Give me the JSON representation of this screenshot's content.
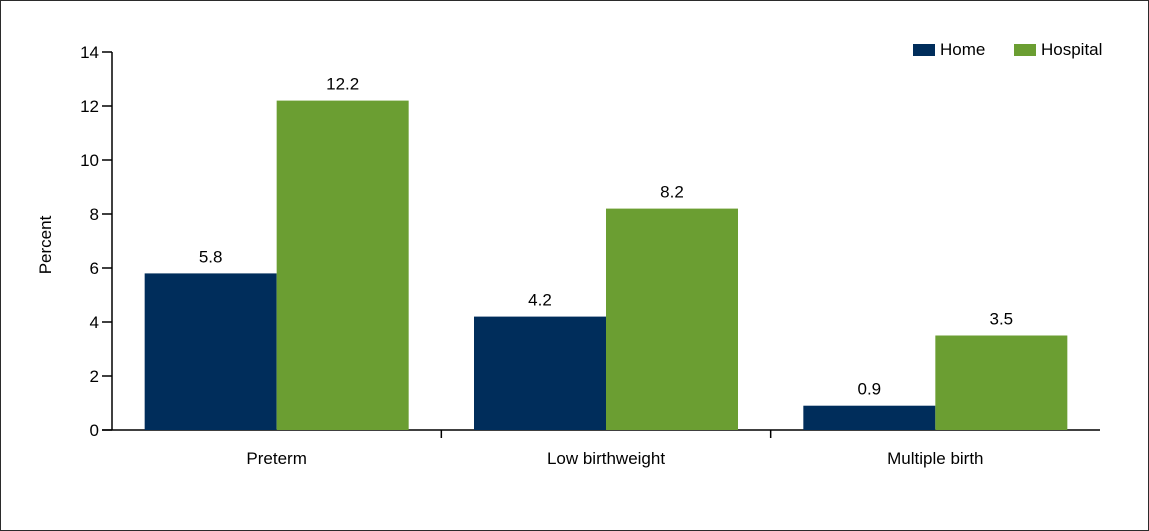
{
  "chart_data": {
    "type": "bar",
    "categories": [
      "Preterm",
      "Low birthweight",
      "Multiple birth"
    ],
    "series": [
      {
        "name": "Home",
        "values": [
          5.8,
          4.2,
          0.9
        ],
        "color": "#002d5b"
      },
      {
        "name": "Hospital",
        "values": [
          12.2,
          8.2,
          3.5
        ],
        "color": "#6b9e32"
      }
    ],
    "data_labels": [
      [
        "5.8",
        "4.2",
        "0.9"
      ],
      [
        "12.2",
        "8.2",
        "3.5"
      ]
    ],
    "ylabel": "Percent",
    "xlabel": "",
    "ylim": [
      0,
      14
    ],
    "yticks": [
      0,
      2,
      4,
      6,
      8,
      10,
      12,
      14
    ],
    "legend_position": "top-right",
    "grid": false
  }
}
